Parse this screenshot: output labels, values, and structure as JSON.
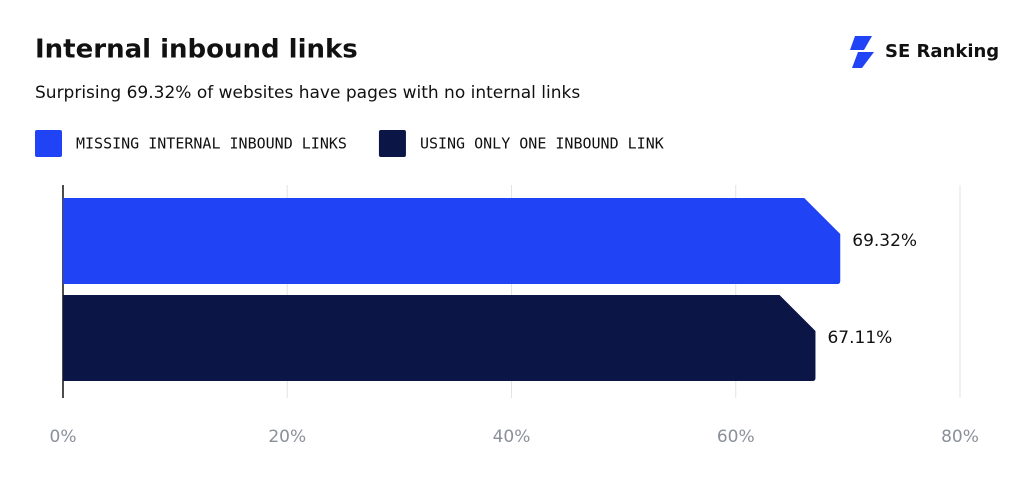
{
  "brand": "SE Ranking",
  "chart_data": {
    "type": "hbar",
    "title": "Internal inbound links",
    "subtitle": "Surprising 69.32% of websites have pages with no internal links",
    "series": [
      {
        "name": "MISSING INTERNAL INBOUND LINKS",
        "color": "#1f43f5",
        "values": [
          69.32
        ],
        "value_labels": [
          "69.32%"
        ]
      },
      {
        "name": "USING ONLY ONE INBOUND LINK",
        "color": "#0b1647",
        "values": [
          67.11
        ],
        "value_labels": [
          "67.11%"
        ]
      }
    ],
    "xlim": [
      0,
      80
    ],
    "xticks": [
      {
        "value": 0,
        "label": "0%"
      },
      {
        "value": 20,
        "label": "20%"
      },
      {
        "value": 40,
        "label": "40%"
      },
      {
        "value": 60,
        "label": "60%"
      },
      {
        "value": 80,
        "label": "80%"
      }
    ],
    "grid": true,
    "legend": "top"
  }
}
